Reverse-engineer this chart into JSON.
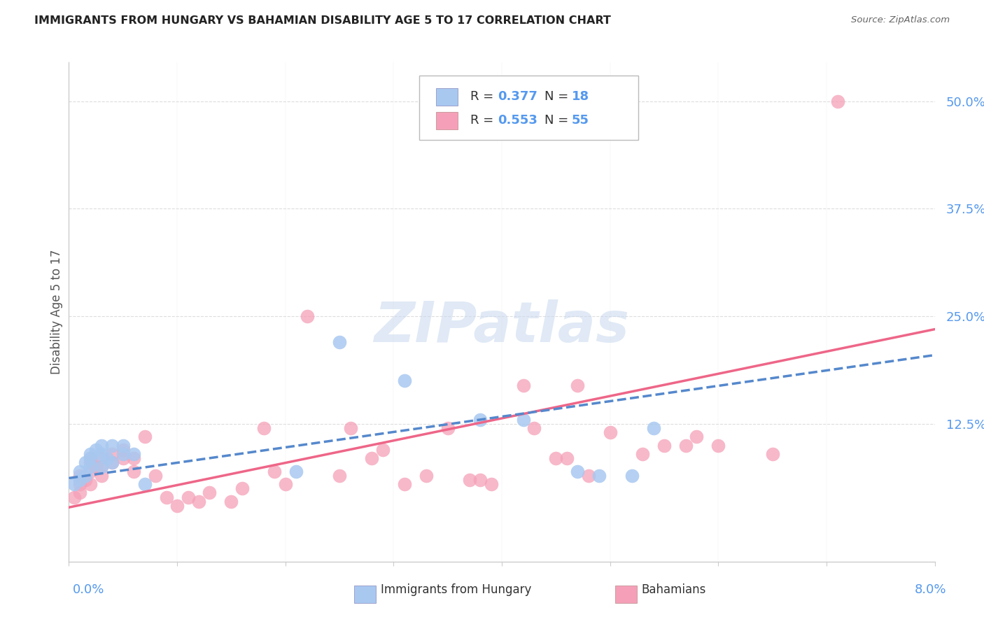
{
  "title": "IMMIGRANTS FROM HUNGARY VS BAHAMIAN DISABILITY AGE 5 TO 17 CORRELATION CHART",
  "source": "Source: ZipAtlas.com",
  "ylabel": "Disability Age 5 to 17",
  "xmin": 0.0,
  "xmax": 0.08,
  "ymin": -0.035,
  "ymax": 0.545,
  "hungary_color": "#a8c8f0",
  "bahamian_color": "#f5a0b8",
  "hungary_line_color": "#5588cc",
  "bahamian_line_color": "#ee6688",
  "tick_color": "#5599ee",
  "label_color": "#333333",
  "grid_color": "#dddddd",
  "watermark_color_zip": "#c8d8ee",
  "watermark_color_atlas": "#c8d8ee",
  "background_color": "#ffffff",
  "hungary_x": [
    0.0005,
    0.001,
    0.001,
    0.0015,
    0.0015,
    0.002,
    0.002,
    0.002,
    0.0025,
    0.003,
    0.003,
    0.003,
    0.0035,
    0.004,
    0.004,
    0.005,
    0.005,
    0.006,
    0.007,
    0.021,
    0.025,
    0.031,
    0.038,
    0.042,
    0.047,
    0.049,
    0.052,
    0.054
  ],
  "hungary_y": [
    0.055,
    0.06,
    0.07,
    0.065,
    0.08,
    0.075,
    0.085,
    0.09,
    0.095,
    0.075,
    0.09,
    0.1,
    0.085,
    0.08,
    0.1,
    0.09,
    0.1,
    0.09,
    0.055,
    0.07,
    0.22,
    0.175,
    0.13,
    0.13,
    0.07,
    0.065,
    0.065,
    0.12
  ],
  "bahamian_x": [
    0.0005,
    0.001,
    0.001,
    0.001,
    0.0015,
    0.002,
    0.002,
    0.002,
    0.002,
    0.0025,
    0.003,
    0.003,
    0.003,
    0.004,
    0.004,
    0.005,
    0.005,
    0.006,
    0.006,
    0.007,
    0.008,
    0.009,
    0.01,
    0.011,
    0.012,
    0.013,
    0.015,
    0.016,
    0.018,
    0.019,
    0.02,
    0.022,
    0.025,
    0.026,
    0.028,
    0.029,
    0.031,
    0.033,
    0.035,
    0.037,
    0.038,
    0.039,
    0.042,
    0.043,
    0.045,
    0.046,
    0.047,
    0.048,
    0.05,
    0.053,
    0.055,
    0.057,
    0.058,
    0.06,
    0.065,
    0.071
  ],
  "bahamian_y": [
    0.04,
    0.045,
    0.055,
    0.065,
    0.06,
    0.055,
    0.07,
    0.08,
    0.085,
    0.075,
    0.065,
    0.075,
    0.085,
    0.08,
    0.09,
    0.085,
    0.095,
    0.07,
    0.085,
    0.11,
    0.065,
    0.04,
    0.03,
    0.04,
    0.035,
    0.045,
    0.035,
    0.05,
    0.12,
    0.07,
    0.055,
    0.25,
    0.065,
    0.12,
    0.085,
    0.095,
    0.055,
    0.065,
    0.12,
    0.06,
    0.06,
    0.055,
    0.17,
    0.12,
    0.085,
    0.085,
    0.17,
    0.065,
    0.115,
    0.09,
    0.1,
    0.1,
    0.11,
    0.1,
    0.09,
    0.5
  ],
  "hungary_line_x0": 0.0,
  "hungary_line_x1": 0.08,
  "hungary_line_y0": 0.062,
  "hungary_line_y1": 0.205,
  "bahamian_line_x0": 0.0,
  "bahamian_line_x1": 0.08,
  "bahamian_line_y0": 0.028,
  "bahamian_line_y1": 0.235
}
